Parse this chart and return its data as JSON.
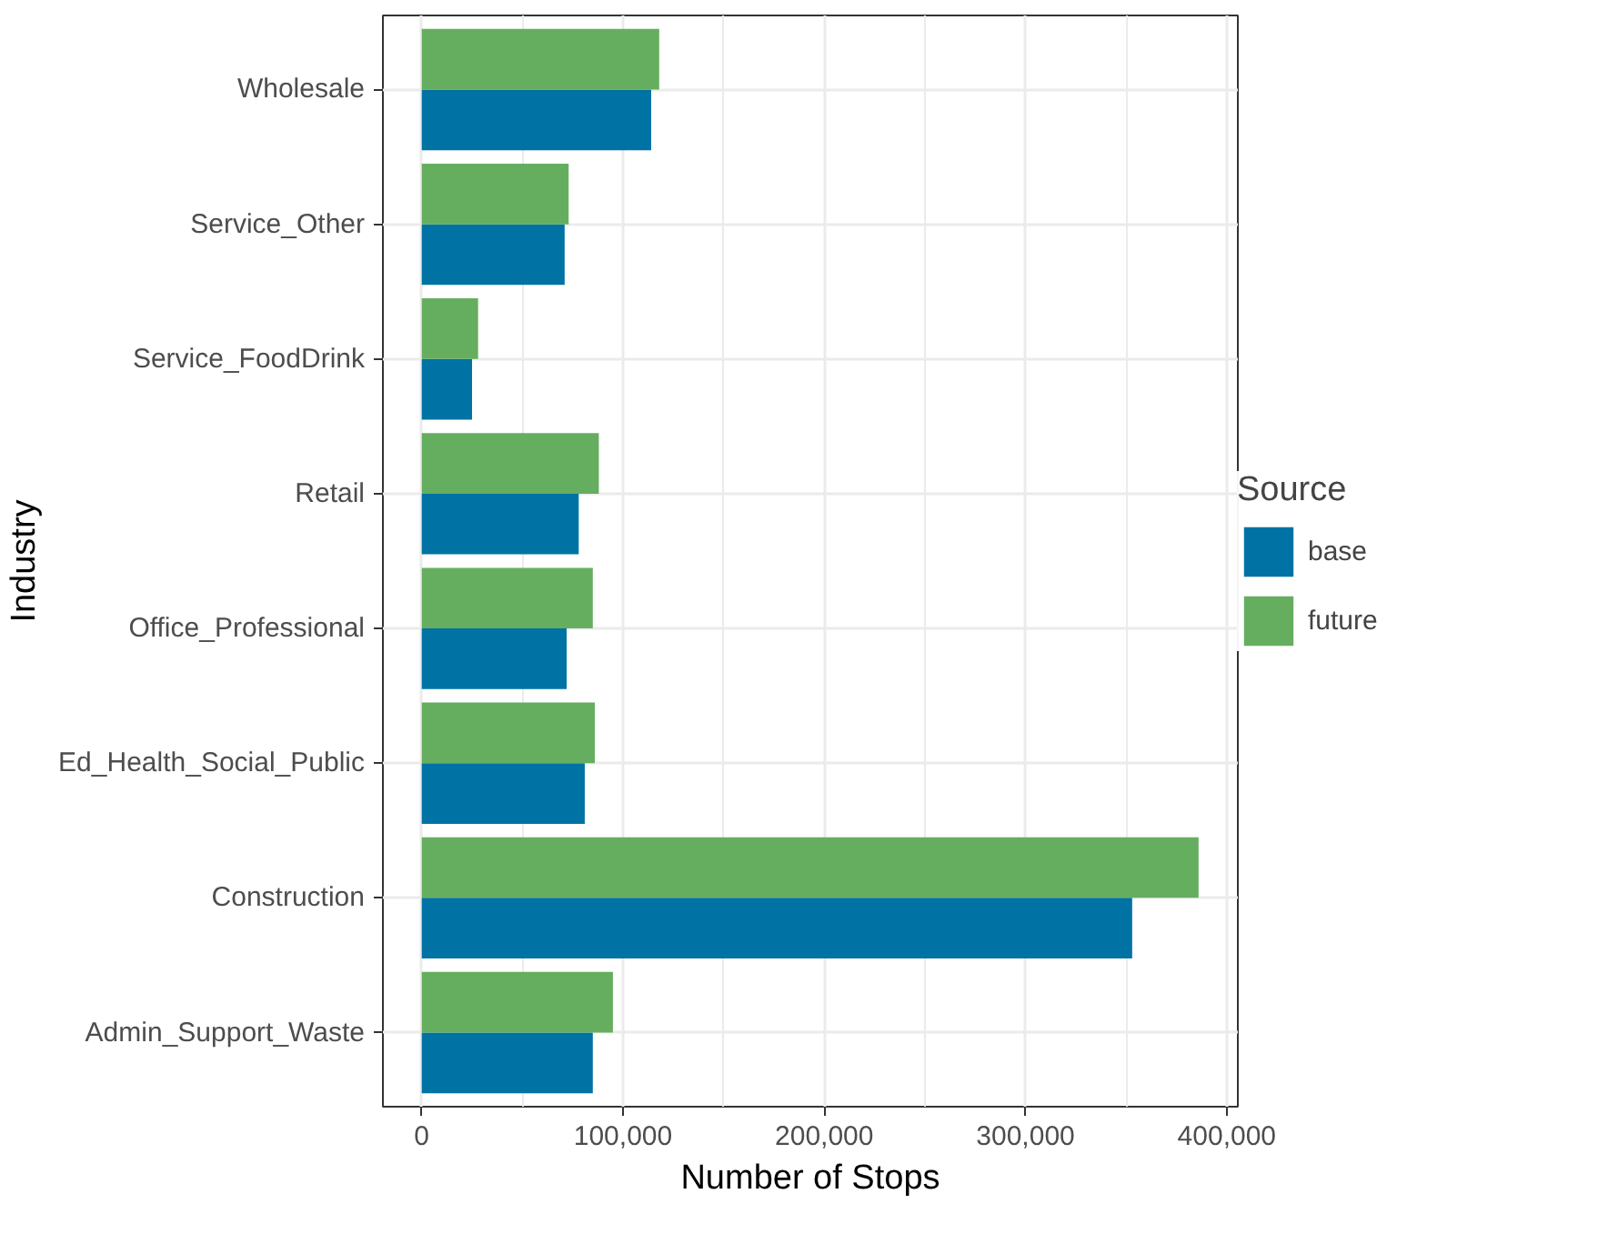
{
  "chart_data": {
    "type": "bar",
    "orientation": "horizontal",
    "xlabel": "Number of Stops",
    "ylabel": "Industry",
    "legend_title": "Source",
    "categories": [
      "Wholesale",
      "Service_Other",
      "Service_FoodDrink",
      "Retail",
      "Office_Professional",
      "Ed_Health_Social_Public",
      "Construction",
      "Admin_Support_Waste"
    ],
    "series": [
      {
        "name": "base",
        "color": "#0072a4",
        "values": [
          114000,
          71000,
          25000,
          78000,
          72000,
          81000,
          353000,
          85000
        ]
      },
      {
        "name": "future",
        "color": "#66ae5f",
        "values": [
          118000,
          73000,
          28000,
          88000,
          85000,
          86000,
          386000,
          95000
        ]
      }
    ],
    "xlim": [
      -19300,
      405500
    ],
    "xticks": [
      {
        "value": 0,
        "label": "0"
      },
      {
        "value": 100000,
        "label": "100,000"
      },
      {
        "value": 200000,
        "label": "200,000"
      },
      {
        "value": 300000,
        "label": "300,000"
      },
      {
        "value": 400000,
        "label": "400,000"
      }
    ],
    "grid": true,
    "legend": "right"
  }
}
